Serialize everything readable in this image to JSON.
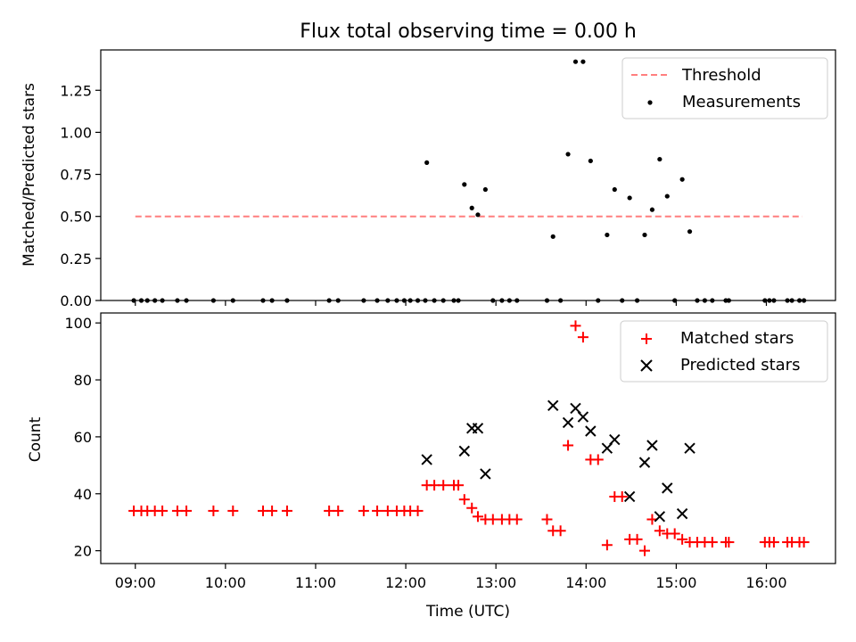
{
  "chart_data": [
    {
      "type": "scatter",
      "title": "Flux total observing time = 0.00 h",
      "xlabel": "",
      "ylabel": "Matched/Predicted stars",
      "xlim": [
        "08:37",
        "16:46"
      ],
      "ylim": [
        0,
        1.49
      ],
      "x_ticks": [
        "09:00",
        "10:00",
        "11:00",
        "12:00",
        "13:00",
        "14:00",
        "15:00",
        "16:00"
      ],
      "y_ticks": [
        {
          "value": 0.0,
          "label": "0.00"
        },
        {
          "value": 0.25,
          "label": "0.25"
        },
        {
          "value": 0.5,
          "label": "0.50"
        },
        {
          "value": 0.75,
          "label": "0.75"
        },
        {
          "value": 1.0,
          "label": "1.00"
        },
        {
          "value": 1.25,
          "label": "1.25"
        }
      ],
      "grid": false,
      "legend_position": "top-right",
      "threshold": {
        "name": "Threshold",
        "value": 0.5,
        "x_range": [
          "09:00",
          "16:24"
        ],
        "color": "#ff7f7f",
        "style": "dashed"
      },
      "series": [
        {
          "name": "Measurements",
          "marker": "dot",
          "color": "#000000",
          "points": [
            [
              "08:59",
              0
            ],
            [
              "09:04",
              0
            ],
            [
              "09:08",
              0
            ],
            [
              "09:13",
              0
            ],
            [
              "09:18",
              0
            ],
            [
              "09:28",
              0
            ],
            [
              "09:34",
              0
            ],
            [
              "09:52",
              0
            ],
            [
              "10:05",
              0
            ],
            [
              "10:25",
              0
            ],
            [
              "10:31",
              0
            ],
            [
              "10:41",
              0
            ],
            [
              "11:09",
              0
            ],
            [
              "11:15",
              0
            ],
            [
              "11:32",
              0
            ],
            [
              "11:41",
              0
            ],
            [
              "11:48",
              0
            ],
            [
              "11:54",
              0
            ],
            [
              "11:59",
              0
            ],
            [
              "12:03",
              0
            ],
            [
              "12:08",
              0
            ],
            [
              "12:13",
              0
            ],
            [
              "12:14",
              0.82
            ],
            [
              "12:19",
              0
            ],
            [
              "12:25",
              0
            ],
            [
              "12:32",
              0
            ],
            [
              "12:35",
              0
            ],
            [
              "12:39",
              0.69
            ],
            [
              "12:44",
              0.55
            ],
            [
              "12:48",
              0.51
            ],
            [
              "12:53",
              0.66
            ],
            [
              "12:58",
              0
            ],
            [
              "13:04",
              0
            ],
            [
              "13:09",
              0
            ],
            [
              "13:14",
              0
            ],
            [
              "13:34",
              0
            ],
            [
              "13:38",
              0.38
            ],
            [
              "13:43",
              0
            ],
            [
              "13:48",
              0.87
            ],
            [
              "13:53",
              1.42
            ],
            [
              "13:58",
              1.42
            ],
            [
              "14:03",
              0.83
            ],
            [
              "14:08",
              0
            ],
            [
              "14:14",
              0.39
            ],
            [
              "14:19",
              0.66
            ],
            [
              "14:24",
              0
            ],
            [
              "14:29",
              0.61
            ],
            [
              "14:34",
              0
            ],
            [
              "14:39",
              0.39
            ],
            [
              "14:44",
              0.54
            ],
            [
              "14:49",
              0.84
            ],
            [
              "14:54",
              0.62
            ],
            [
              "14:59",
              0
            ],
            [
              "15:04",
              0.72
            ],
            [
              "15:09",
              0.41
            ],
            [
              "15:14",
              0
            ],
            [
              "15:19",
              0
            ],
            [
              "15:24",
              0
            ],
            [
              "15:33",
              0
            ],
            [
              "15:35",
              0
            ],
            [
              "15:59",
              0
            ],
            [
              "16:02",
              0
            ],
            [
              "16:05",
              0
            ],
            [
              "16:14",
              0
            ],
            [
              "16:17",
              0
            ],
            [
              "16:22",
              0
            ],
            [
              "16:25",
              0
            ]
          ]
        }
      ]
    },
    {
      "type": "scatter",
      "title": "",
      "xlabel": "Time (UTC)",
      "ylabel": "Count",
      "xlim": [
        "08:37",
        "16:46"
      ],
      "ylim": [
        15.5,
        103.5
      ],
      "x_ticks": [
        "09:00",
        "10:00",
        "11:00",
        "12:00",
        "13:00",
        "14:00",
        "15:00",
        "16:00"
      ],
      "y_ticks": [
        {
          "value": 20,
          "label": "20"
        },
        {
          "value": 40,
          "label": "40"
        },
        {
          "value": 60,
          "label": "60"
        },
        {
          "value": 80,
          "label": "80"
        },
        {
          "value": 100,
          "label": "100"
        }
      ],
      "grid": false,
      "legend_position": "top-right",
      "series": [
        {
          "name": "Matched stars",
          "marker": "plus",
          "color": "#ff0000",
          "points": [
            [
              "08:59",
              34
            ],
            [
              "09:04",
              34
            ],
            [
              "09:08",
              34
            ],
            [
              "09:13",
              34
            ],
            [
              "09:18",
              34
            ],
            [
              "09:28",
              34
            ],
            [
              "09:34",
              34
            ],
            [
              "09:52",
              34
            ],
            [
              "10:05",
              34
            ],
            [
              "10:25",
              34
            ],
            [
              "10:31",
              34
            ],
            [
              "10:41",
              34
            ],
            [
              "11:09",
              34
            ],
            [
              "11:15",
              34
            ],
            [
              "11:32",
              34
            ],
            [
              "11:41",
              34
            ],
            [
              "11:48",
              34
            ],
            [
              "11:54",
              34
            ],
            [
              "11:59",
              34
            ],
            [
              "12:03",
              34
            ],
            [
              "12:08",
              34
            ],
            [
              "12:14",
              43
            ],
            [
              "12:19",
              43
            ],
            [
              "12:25",
              43
            ],
            [
              "12:32",
              43
            ],
            [
              "12:35",
              43
            ],
            [
              "12:39",
              38
            ],
            [
              "12:44",
              35
            ],
            [
              "12:48",
              32
            ],
            [
              "12:53",
              31
            ],
            [
              "12:58",
              31
            ],
            [
              "13:04",
              31
            ],
            [
              "13:09",
              31
            ],
            [
              "13:14",
              31
            ],
            [
              "13:34",
              31
            ],
            [
              "13:38",
              27
            ],
            [
              "13:43",
              27
            ],
            [
              "13:48",
              57
            ],
            [
              "13:53",
              99
            ],
            [
              "13:58",
              95
            ],
            [
              "14:03",
              52
            ],
            [
              "14:08",
              52
            ],
            [
              "14:14",
              22
            ],
            [
              "14:19",
              39
            ],
            [
              "14:24",
              39
            ],
            [
              "14:29",
              24
            ],
            [
              "14:34",
              24
            ],
            [
              "14:39",
              20
            ],
            [
              "14:44",
              31
            ],
            [
              "14:49",
              27
            ],
            [
              "14:54",
              26
            ],
            [
              "14:59",
              26
            ],
            [
              "15:04",
              24
            ],
            [
              "15:09",
              23
            ],
            [
              "15:14",
              23
            ],
            [
              "15:19",
              23
            ],
            [
              "15:24",
              23
            ],
            [
              "15:33",
              23
            ],
            [
              "15:35",
              23
            ],
            [
              "15:59",
              23
            ],
            [
              "16:02",
              23
            ],
            [
              "16:05",
              23
            ],
            [
              "16:14",
              23
            ],
            [
              "16:17",
              23
            ],
            [
              "16:22",
              23
            ],
            [
              "16:25",
              23
            ]
          ]
        },
        {
          "name": "Predicted stars",
          "marker": "x",
          "color": "#000000",
          "points": [
            [
              "12:14",
              52
            ],
            [
              "12:39",
              55
            ],
            [
              "12:44",
              63
            ],
            [
              "12:48",
              63
            ],
            [
              "12:53",
              47
            ],
            [
              "13:38",
              71
            ],
            [
              "13:48",
              65
            ],
            [
              "13:53",
              70
            ],
            [
              "13:58",
              67
            ],
            [
              "14:03",
              62
            ],
            [
              "14:14",
              56
            ],
            [
              "14:19",
              59
            ],
            [
              "14:29",
              39
            ],
            [
              "14:39",
              51
            ],
            [
              "14:44",
              57
            ],
            [
              "14:49",
              32
            ],
            [
              "14:54",
              42
            ],
            [
              "15:04",
              33
            ],
            [
              "15:09",
              56
            ]
          ]
        }
      ]
    }
  ]
}
